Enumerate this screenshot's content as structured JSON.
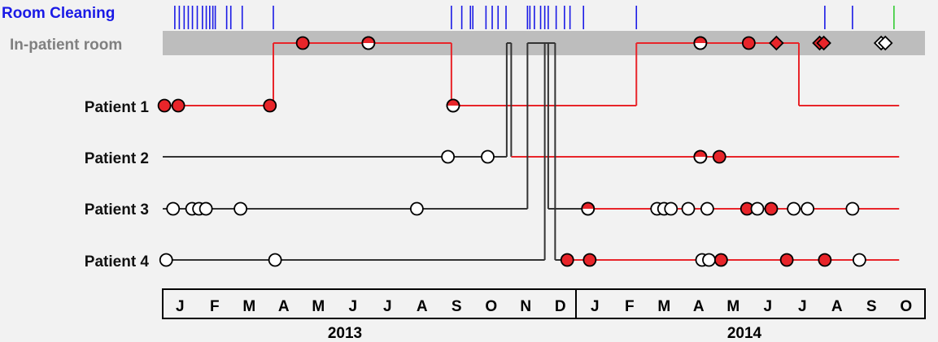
{
  "chart_data": {
    "type": "timeline",
    "rows": {
      "cleaning": "Room Cleaning",
      "room": "In-patient room",
      "patients": [
        "Patient 1",
        "Patient 2",
        "Patient 3",
        "Patient 4"
      ]
    },
    "months": [
      "J",
      "F",
      "M",
      "A",
      "M",
      "J",
      "J",
      "A",
      "S",
      "O",
      "N",
      "D",
      "J",
      "F",
      "M",
      "A",
      "M",
      "J",
      "J",
      "A",
      "S",
      "O"
    ],
    "years": [
      "2013",
      "2014"
    ],
    "x_unit": "month index from Jan 2013 (0 = start of January 2013)",
    "colors": {
      "cleaning_label": "#1a1ae6",
      "room_label": "#808080",
      "room_band": "#bdbdbd",
      "cleaning_tick": "#1a1ae6",
      "final_cleaning_tick": "#33cc33",
      "positive": "#e8252a",
      "negative": "#ffffff",
      "colonized_line": "#e8252a",
      "uncolonized_line": "#333333"
    },
    "cleaning_events": [
      0.35,
      0.48,
      0.62,
      0.74,
      0.86,
      1.0,
      1.15,
      1.26,
      1.36,
      1.45,
      1.52,
      1.85,
      1.97,
      2.3,
      3.2,
      8.35,
      8.65,
      8.9,
      8.97,
      9.35,
      9.53,
      9.7,
      9.93,
      10.55,
      10.62,
      10.75,
      10.93,
      11.05,
      11.15,
      11.38,
      11.62,
      11.78,
      12.17,
      13.7,
      19.15,
      19.95
    ],
    "final_cleaning_events": [
      21.15
    ],
    "patient1": {
      "path": [
        [
          0,
          2
        ],
        [
          3.2,
          2
        ],
        [
          3.2,
          0
        ],
        [
          8.35,
          0
        ],
        [
          8.35,
          2
        ],
        [
          13.7,
          2
        ],
        [
          13.7,
          0
        ],
        [
          18.4,
          0
        ],
        [
          18.4,
          2
        ],
        [
          21.3,
          2
        ]
      ],
      "segment_status": [
        "positive",
        "positive",
        "positive",
        "positive",
        "positive",
        "positive",
        "positive",
        "positive",
        "positive"
      ]
    },
    "patient2": {
      "path": [
        [
          0,
          3
        ],
        [
          9.95,
          3
        ],
        [
          9.95,
          0
        ],
        [
          10.08,
          0
        ],
        [
          10.08,
          3
        ],
        [
          21.3,
          3
        ]
      ],
      "segment_status": [
        "negative",
        "negative",
        "negative",
        "negative",
        "positive"
      ]
    },
    "patient3": {
      "path": [
        [
          0,
          4
        ],
        [
          10.55,
          4
        ],
        [
          10.55,
          0
        ],
        [
          11.15,
          0
        ],
        [
          11.15,
          4
        ],
        [
          21.3,
          4
        ]
      ],
      "segment_status": [
        "negative",
        "negative",
        "negative",
        "negative",
        "negative"
      ],
      "color_change_at": 12.2
    },
    "patient4": {
      "path": [
        [
          0,
          5
        ],
        [
          11.05,
          5
        ],
        [
          11.05,
          0
        ],
        [
          11.35,
          0
        ],
        [
          11.35,
          5
        ],
        [
          21.3,
          5
        ]
      ],
      "segment_status": [
        "negative",
        "negative",
        "negative",
        "negative",
        "negative"
      ],
      "color_change_at": 11.7
    },
    "samples": [
      {
        "row": 0,
        "x": 4.05,
        "result": "positive"
      },
      {
        "row": 0,
        "x": 5.95,
        "result": "half"
      },
      {
        "row": 0,
        "x": 15.55,
        "result": "half"
      },
      {
        "row": 0,
        "x": 16.95,
        "result": "positive"
      },
      {
        "row": 2,
        "x": 0.05,
        "result": "positive"
      },
      {
        "row": 2,
        "x": 0.45,
        "result": "positive"
      },
      {
        "row": 2,
        "x": 3.1,
        "result": "positive"
      },
      {
        "row": 2,
        "x": 8.4,
        "result": "half"
      },
      {
        "row": 3,
        "x": 8.25,
        "result": "negative"
      },
      {
        "row": 3,
        "x": 9.4,
        "result": "negative"
      },
      {
        "row": 3,
        "x": 15.55,
        "result": "half"
      },
      {
        "row": 3,
        "x": 16.1,
        "result": "positive"
      },
      {
        "row": 4,
        "x": 0.3,
        "result": "negative"
      },
      {
        "row": 4,
        "x": 0.85,
        "result": "negative"
      },
      {
        "row": 4,
        "x": 1.05,
        "result": "negative"
      },
      {
        "row": 4,
        "x": 1.25,
        "result": "negative"
      },
      {
        "row": 4,
        "x": 2.25,
        "result": "negative"
      },
      {
        "row": 4,
        "x": 7.35,
        "result": "negative"
      },
      {
        "row": 4,
        "x": 12.3,
        "result": "half"
      },
      {
        "row": 4,
        "x": 14.3,
        "result": "negative"
      },
      {
        "row": 4,
        "x": 14.5,
        "result": "negative"
      },
      {
        "row": 4,
        "x": 14.7,
        "result": "negative"
      },
      {
        "row": 4,
        "x": 15.2,
        "result": "negative"
      },
      {
        "row": 4,
        "x": 15.75,
        "result": "negative"
      },
      {
        "row": 4,
        "x": 16.9,
        "result": "positive"
      },
      {
        "row": 4,
        "x": 17.2,
        "result": "negative"
      },
      {
        "row": 4,
        "x": 17.6,
        "result": "positive"
      },
      {
        "row": 4,
        "x": 18.25,
        "result": "negative"
      },
      {
        "row": 4,
        "x": 18.65,
        "result": "negative"
      },
      {
        "row": 4,
        "x": 19.95,
        "result": "negative"
      },
      {
        "row": 5,
        "x": 0.1,
        "result": "negative"
      },
      {
        "row": 5,
        "x": 3.25,
        "result": "negative"
      },
      {
        "row": 5,
        "x": 11.7,
        "result": "positive"
      },
      {
        "row": 5,
        "x": 12.35,
        "result": "positive"
      },
      {
        "row": 5,
        "x": 15.6,
        "result": "negative"
      },
      {
        "row": 5,
        "x": 15.8,
        "result": "negative"
      },
      {
        "row": 5,
        "x": 16.15,
        "result": "positive"
      },
      {
        "row": 5,
        "x": 18.05,
        "result": "positive"
      },
      {
        "row": 5,
        "x": 19.15,
        "result": "positive"
      },
      {
        "row": 5,
        "x": 20.15,
        "result": "negative"
      }
    ],
    "environment_samples": [
      {
        "x": 17.75,
        "result": "positive"
      },
      {
        "x": 19.0,
        "result": "positive"
      },
      {
        "x": 19.12,
        "result": "positive"
      },
      {
        "x": 20.78,
        "result": "negative"
      },
      {
        "x": 20.9,
        "result": "negative"
      }
    ]
  }
}
